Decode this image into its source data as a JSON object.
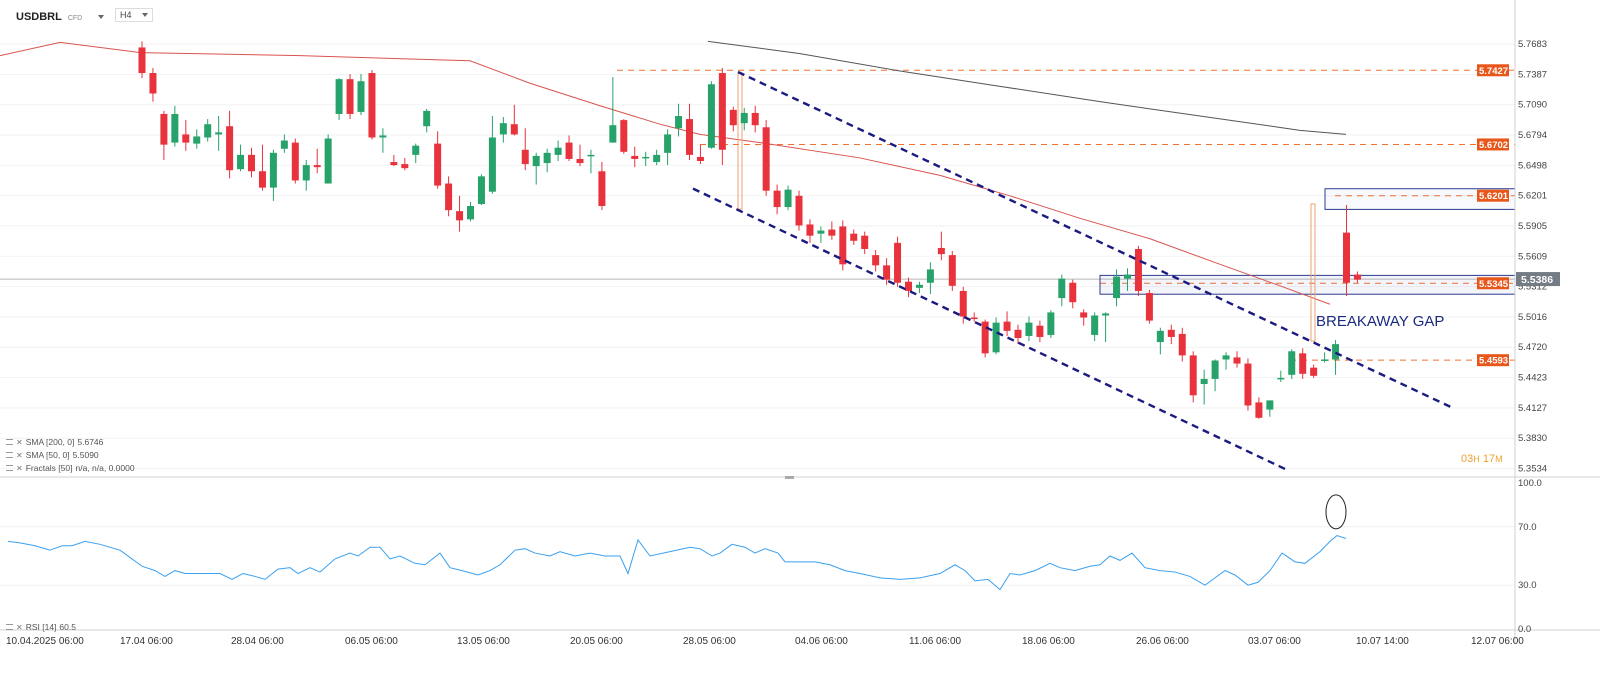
{
  "header": {
    "symbol": "USDBRL",
    "instrument_type": "CFD",
    "timeframe": "H4"
  },
  "indicators": [
    {
      "name": "SMA [200, 0]",
      "value": "5.6746"
    },
    {
      "name": "SMA [50, 0]",
      "value": "5.5090"
    },
    {
      "name": "Fractals [50]",
      "value": "n/a, n/a, 0.0000"
    }
  ],
  "rsi_legend": {
    "name": "RSI [14]",
    "value": "60.5"
  },
  "annotation_text": "BREAKAWAY GAP",
  "candle_timer": {
    "hours": "03",
    "hours_unit": "H",
    "minutes": "17",
    "minutes_unit": "M"
  },
  "colors": {
    "up": "#26a26a",
    "down": "#e8323c",
    "sma50": "#d9534f",
    "sma200": "#555555",
    "channel": "#1a1a80",
    "level": "#f07030",
    "rsi": "#3aa0f0"
  },
  "chart_data": [
    {
      "type": "candlestick",
      "symbol": "USDBRL",
      "timeframe": "H4",
      "ylim": [
        5.35,
        5.785
      ],
      "y_ticks": [
        "5.7683",
        "5.7387",
        "5.7090",
        "5.6794",
        "5.6498",
        "5.6201",
        "5.5905",
        "5.5609",
        "5.5312",
        "5.5016",
        "5.4720",
        "5.4423",
        "5.4127",
        "5.3830",
        "5.3534"
      ],
      "x_tick_labels": [
        "10.04.2025  06:00",
        "17.04  06:00",
        "28.04  06:00",
        "06.05  06:00",
        "13.05  06:00",
        "20.05  06:00",
        "28.05  06:00",
        "04.06  06:00",
        "11.06  06:00",
        "18.06  06:00",
        "26.06  06:00",
        "03.07  06:00",
        "10.07  14:00",
        "12.07  06:00"
      ],
      "current_price": "5.5386",
      "price_labels": [
        "5.7427",
        "5.6702",
        "5.6201",
        "5.5345",
        "5.4593"
      ],
      "candles": [
        [
          5.765,
          5.771,
          5.735,
          5.74
        ],
        [
          5.74,
          5.745,
          5.712,
          5.72
        ],
        [
          5.7,
          5.703,
          5.655,
          5.67
        ],
        [
          5.672,
          5.708,
          5.668,
          5.7
        ],
        [
          5.68,
          5.694,
          5.664,
          5.672
        ],
        [
          5.671,
          5.685,
          5.666,
          5.678
        ],
        [
          5.677,
          5.695,
          5.673,
          5.69
        ],
        [
          5.68,
          5.698,
          5.664,
          5.682
        ],
        [
          5.688,
          5.703,
          5.637,
          5.645
        ],
        [
          5.646,
          5.67,
          5.644,
          5.66
        ],
        [
          5.66,
          5.667,
          5.638,
          5.644
        ],
        [
          5.644,
          5.67,
          5.625,
          5.628
        ],
        [
          5.628,
          5.665,
          5.615,
          5.662
        ],
        [
          5.666,
          5.68,
          5.662,
          5.674
        ],
        [
          5.672,
          5.676,
          5.632,
          5.635
        ],
        [
          5.635,
          5.655,
          5.625,
          5.65
        ],
        [
          5.65,
          5.666,
          5.642,
          5.648
        ],
        [
          5.632,
          5.68,
          5.632,
          5.676
        ],
        [
          5.7,
          5.735,
          5.694,
          5.734
        ],
        [
          5.734,
          5.739,
          5.695,
          5.7
        ],
        [
          5.702,
          5.739,
          5.699,
          5.732
        ],
        [
          5.74,
          5.743,
          5.675,
          5.677
        ],
        [
          5.677,
          5.686,
          5.662,
          5.679
        ],
        [
          5.653,
          5.66,
          5.649,
          5.65
        ],
        [
          5.651,
          5.657,
          5.645,
          5.647
        ],
        [
          5.66,
          5.671,
          5.652,
          5.669
        ],
        [
          5.688,
          5.705,
          5.682,
          5.703
        ],
        [
          5.671,
          5.683,
          5.627,
          5.63
        ],
        [
          5.632,
          5.639,
          5.6,
          5.606
        ],
        [
          5.605,
          5.62,
          5.585,
          5.596
        ],
        [
          5.597,
          5.614,
          5.595,
          5.61
        ],
        [
          5.612,
          5.641,
          5.611,
          5.639
        ],
        [
          5.624,
          5.698,
          5.622,
          5.677
        ],
        [
          5.68,
          5.697,
          5.672,
          5.691
        ],
        [
          5.69,
          5.709,
          5.679,
          5.68
        ],
        [
          5.665,
          5.686,
          5.645,
          5.651
        ],
        [
          5.649,
          5.662,
          5.631,
          5.659
        ],
        [
          5.652,
          5.666,
          5.643,
          5.662
        ],
        [
          5.66,
          5.674,
          5.654,
          5.667
        ],
        [
          5.672,
          5.679,
          5.654,
          5.656
        ],
        [
          5.656,
          5.67,
          5.649,
          5.652
        ],
        [
          5.659,
          5.665,
          5.642,
          5.66
        ],
        [
          5.644,
          5.653,
          5.606,
          5.61
        ],
        [
          5.672,
          5.736,
          5.672,
          5.689
        ],
        [
          5.694,
          5.695,
          5.661,
          5.663
        ],
        [
          5.659,
          5.668,
          5.648,
          5.656
        ],
        [
          5.657,
          5.663,
          5.649,
          5.658
        ],
        [
          5.653,
          5.665,
          5.65,
          5.66
        ],
        [
          5.662,
          5.685,
          5.65,
          5.68
        ],
        [
          5.686,
          5.71,
          5.678,
          5.698
        ],
        [
          5.695,
          5.71,
          5.655,
          5.66
        ],
        [
          5.658,
          5.67,
          5.651,
          5.654
        ],
        [
          5.667,
          5.732,
          5.666,
          5.729
        ],
        [
          5.74,
          5.745,
          5.65,
          5.665
        ],
        [
          5.704,
          5.707,
          5.683,
          5.689
        ],
        [
          5.691,
          5.706,
          5.684,
          5.701
        ],
        [
          5.701,
          5.708,
          5.682,
          5.689
        ],
        [
          5.687,
          5.694,
          5.62,
          5.625
        ],
        [
          5.625,
          5.631,
          5.602,
          5.609
        ],
        [
          5.609,
          5.63,
          5.606,
          5.626
        ],
        [
          5.62,
          5.625,
          5.586,
          5.591
        ],
        [
          5.592,
          5.597,
          5.574,
          5.581
        ],
        [
          5.583,
          5.59,
          5.574,
          5.586
        ],
        [
          5.587,
          5.595,
          5.577,
          5.581
        ],
        [
          5.59,
          5.596,
          5.547,
          5.553
        ],
        [
          5.583,
          5.587,
          5.572,
          5.576
        ],
        [
          5.581,
          5.585,
          5.563,
          5.568
        ],
        [
          5.562,
          5.567,
          5.546,
          5.552
        ],
        [
          5.552,
          5.559,
          5.533,
          5.538
        ],
        [
          5.574,
          5.58,
          5.531,
          5.535
        ],
        [
          5.536,
          5.54,
          5.521,
          5.527
        ],
        [
          5.53,
          5.536,
          5.525,
          5.533
        ],
        [
          5.535,
          5.555,
          5.524,
          5.548
        ],
        [
          5.569,
          5.585,
          5.557,
          5.563
        ],
        [
          5.562,
          5.566,
          5.527,
          5.532
        ],
        [
          5.527,
          5.531,
          5.495,
          5.502
        ],
        [
          5.501,
          5.506,
          5.497,
          5.5
        ],
        [
          5.497,
          5.499,
          5.462,
          5.466
        ],
        [
          5.467,
          5.501,
          5.465,
          5.496
        ],
        [
          5.497,
          5.507,
          5.483,
          5.488
        ],
        [
          5.489,
          5.494,
          5.475,
          5.481
        ],
        [
          5.483,
          5.502,
          5.478,
          5.496
        ],
        [
          5.493,
          5.498,
          5.477,
          5.482
        ],
        [
          5.484,
          5.508,
          5.481,
          5.506
        ],
        [
          5.52,
          5.543,
          5.512,
          5.539
        ],
        [
          5.535,
          5.538,
          5.51,
          5.516
        ],
        [
          5.506,
          5.509,
          5.493,
          5.501
        ],
        [
          5.484,
          5.506,
          5.478,
          5.503
        ],
        [
          5.503,
          5.506,
          5.477,
          5.505
        ],
        [
          5.52,
          5.548,
          5.512,
          5.541
        ],
        [
          5.539,
          5.549,
          5.527,
          5.543
        ],
        [
          5.568,
          5.571,
          5.522,
          5.527
        ],
        [
          5.525,
          5.528,
          5.495,
          5.498
        ],
        [
          5.477,
          5.491,
          5.465,
          5.488
        ],
        [
          5.489,
          5.494,
          5.475,
          5.482
        ],
        [
          5.485,
          5.491,
          5.458,
          5.464
        ],
        [
          5.464,
          5.468,
          5.418,
          5.425
        ],
        [
          5.436,
          5.45,
          5.416,
          5.441
        ],
        [
          5.441,
          5.46,
          5.429,
          5.459
        ],
        [
          5.46,
          5.467,
          5.45,
          5.464
        ],
        [
          5.462,
          5.468,
          5.452,
          5.456
        ],
        [
          5.456,
          5.461,
          5.41,
          5.415
        ],
        [
          5.418,
          5.423,
          5.402,
          5.403
        ],
        [
          5.411,
          5.42,
          5.404,
          5.42
        ],
        [
          5.441,
          5.449,
          5.438,
          5.442
        ],
        [
          5.445,
          5.47,
          5.441,
          5.468
        ],
        [
          5.466,
          5.471,
          5.441,
          5.446
        ],
        [
          5.452,
          5.455,
          5.442,
          5.444
        ],
        [
          5.46,
          5.467,
          5.457,
          5.46
        ],
        [
          5.46,
          5.479,
          5.445,
          5.475
        ],
        [
          5.584,
          5.611,
          5.522,
          5.535
        ],
        [
          5.543,
          5.546,
          5.535,
          5.538
        ]
      ],
      "sma50": [
        [
          0,
          5.757
        ],
        [
          60,
          5.77
        ],
        [
          140,
          5.76
        ],
        [
          300,
          5.757
        ],
        [
          470,
          5.752
        ],
        [
          530,
          5.73
        ],
        [
          600,
          5.708
        ],
        [
          660,
          5.69
        ],
        [
          700,
          5.68
        ],
        [
          760,
          5.672
        ],
        [
          860,
          5.657
        ],
        [
          940,
          5.64
        ],
        [
          1010,
          5.62
        ],
        [
          1080,
          5.598
        ],
        [
          1150,
          5.578
        ],
        [
          1220,
          5.553
        ],
        [
          1280,
          5.532
        ],
        [
          1330,
          5.514
        ]
      ],
      "sma200": [
        [
          708,
          5.771
        ],
        [
          800,
          5.759
        ],
        [
          900,
          5.742
        ],
        [
          1000,
          5.727
        ],
        [
          1100,
          5.712
        ],
        [
          1200,
          5.698
        ],
        [
          1300,
          5.684
        ],
        [
          1346,
          5.68
        ]
      ],
      "channel_upper": [
        [
          738,
          5.741
        ],
        [
          1452,
          5.413
        ]
      ],
      "channel_lower": [
        [
          693,
          5.627
        ],
        [
          1285,
          5.353
        ]
      ],
      "levels": [
        {
          "label": "5.7427",
          "value": 5.7427,
          "x_start": 617
        },
        {
          "label": "5.6702",
          "value": 5.6702,
          "x_start": 700
        },
        {
          "label": "5.6201",
          "value": 5.6201,
          "x_start": 1335
        },
        {
          "label": "5.5345",
          "value": 5.5345,
          "x_start": 1100
        },
        {
          "label": "5.4593",
          "value": 5.4593,
          "x_start": 1290
        }
      ],
      "fractal_markers": [
        [
          740,
          5.74,
          5.607
        ],
        [
          1313,
          5.612,
          5.478
        ]
      ],
      "gap_box": {
        "y1": 5.5422,
        "y2": 5.5238
      },
      "top_box": {
        "y1": 5.6269,
        "y2": 5.6067
      }
    },
    {
      "type": "line",
      "name": "RSI [14]",
      "ylim": [
        0,
        100
      ],
      "y_ticks": [
        "100.0",
        "70.0",
        "30.0",
        "0.0"
      ],
      "values": [
        [
          8,
          60
        ],
        [
          20,
          59
        ],
        [
          35,
          57
        ],
        [
          50,
          54
        ],
        [
          62,
          57
        ],
        [
          72,
          57
        ],
        [
          85,
          60
        ],
        [
          100,
          58
        ],
        [
          120,
          54
        ],
        [
          130,
          49
        ],
        [
          142,
          43
        ],
        [
          155,
          40
        ],
        [
          165,
          36
        ],
        [
          175,
          40
        ],
        [
          185,
          38
        ],
        [
          195,
          38
        ],
        [
          220,
          38
        ],
        [
          232,
          34
        ],
        [
          243,
          38
        ],
        [
          255,
          36
        ],
        [
          265,
          34
        ],
        [
          278,
          41
        ],
        [
          290,
          42
        ],
        [
          298,
          38
        ],
        [
          310,
          42
        ],
        [
          320,
          39
        ],
        [
          335,
          48
        ],
        [
          350,
          52
        ],
        [
          358,
          50
        ],
        [
          370,
          56
        ],
        [
          380,
          56
        ],
        [
          390,
          48
        ],
        [
          400,
          50
        ],
        [
          415,
          45
        ],
        [
          425,
          44
        ],
        [
          440,
          52
        ],
        [
          450,
          42
        ],
        [
          462,
          40
        ],
        [
          478,
          37
        ],
        [
          490,
          40
        ],
        [
          500,
          44
        ],
        [
          515,
          54
        ],
        [
          525,
          55
        ],
        [
          535,
          52
        ],
        [
          550,
          50
        ],
        [
          560,
          53
        ],
        [
          575,
          50
        ],
        [
          590,
          52
        ],
        [
          605,
          50
        ],
        [
          620,
          50
        ],
        [
          628,
          38
        ],
        [
          638,
          61
        ],
        [
          650,
          50
        ],
        [
          670,
          53
        ],
        [
          690,
          56
        ],
        [
          700,
          55
        ],
        [
          712,
          50
        ],
        [
          720,
          52
        ],
        [
          732,
          58
        ],
        [
          745,
          56
        ],
        [
          755,
          52
        ],
        [
          765,
          55
        ],
        [
          778,
          52
        ],
        [
          785,
          46
        ],
        [
          800,
          46
        ],
        [
          815,
          46
        ],
        [
          830,
          44
        ],
        [
          845,
          40
        ],
        [
          860,
          38
        ],
        [
          880,
          35
        ],
        [
          900,
          34
        ],
        [
          920,
          35
        ],
        [
          940,
          38
        ],
        [
          955,
          44
        ],
        [
          965,
          40
        ],
        [
          975,
          33
        ],
        [
          988,
          34
        ],
        [
          1000,
          27
        ],
        [
          1010,
          38
        ],
        [
          1020,
          37
        ],
        [
          1035,
          40
        ],
        [
          1050,
          45
        ],
        [
          1060,
          42
        ],
        [
          1075,
          40
        ],
        [
          1090,
          43
        ],
        [
          1100,
          44
        ],
        [
          1110,
          50
        ],
        [
          1120,
          47
        ],
        [
          1132,
          52
        ],
        [
          1145,
          42
        ],
        [
          1160,
          40
        ],
        [
          1175,
          39
        ],
        [
          1190,
          36
        ],
        [
          1205,
          30
        ],
        [
          1215,
          35
        ],
        [
          1225,
          40
        ],
        [
          1235,
          37
        ],
        [
          1248,
          30
        ],
        [
          1258,
          32
        ],
        [
          1270,
          40
        ],
        [
          1282,
          52
        ],
        [
          1295,
          46
        ],
        [
          1305,
          45
        ],
        [
          1320,
          53
        ],
        [
          1330,
          60
        ],
        [
          1337,
          64
        ],
        [
          1346,
          62
        ]
      ],
      "marker_ellipse": {
        "x": 1336,
        "y": 72
      }
    }
  ]
}
